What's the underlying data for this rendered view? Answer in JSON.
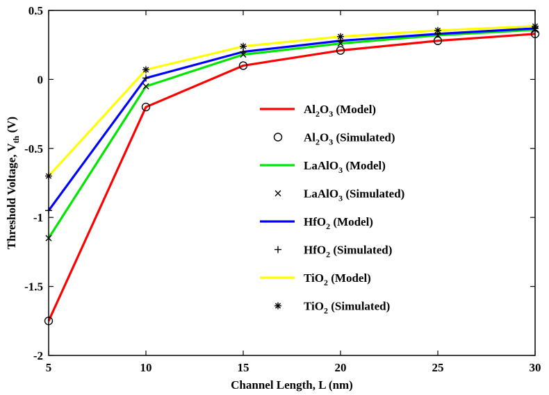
{
  "chart_data": {
    "type": "line",
    "x": [
      5,
      10,
      15,
      20,
      25,
      30
    ],
    "xlim": [
      5,
      30
    ],
    "ylim": [
      -2,
      0.5
    ],
    "xticks": [
      "5",
      "10",
      "15",
      "20",
      "25",
      "30"
    ],
    "yticks": [
      "-2",
      "-1.5",
      "-1",
      "-0.5",
      "0",
      "0.5"
    ],
    "xlabel": "Channel Length, L (nm)",
    "ylabel": {
      "main": "Threshold Voltage, V",
      "sub": "th",
      "unit": " (V)"
    },
    "grid": false,
    "legend_position": "center-right",
    "series": [
      {
        "name": "Al2O3 (Model)",
        "kind": "line",
        "color": "#ff0000",
        "label": {
          "a": "Al",
          "s1": "2",
          "b": "O",
          "s2": "3",
          "c": " (Model)"
        },
        "values": [
          -1.75,
          -0.2,
          0.1,
          0.21,
          0.28,
          0.33
        ]
      },
      {
        "name": "Al2O3 (Simulated)",
        "kind": "marker",
        "marker": "circle",
        "label": {
          "a": "Al",
          "s1": "2",
          "b": "O",
          "s2": "3",
          "c": " (Simulated)"
        },
        "values": [
          -1.75,
          -0.2,
          0.1,
          0.21,
          0.28,
          0.33
        ]
      },
      {
        "name": "LaAlO3 (Model)",
        "kind": "line",
        "color": "#00e600",
        "label": {
          "a": "LaAlO",
          "s1": "3",
          "b": "",
          "s2": "",
          "c": " (Model)"
        },
        "values": [
          -1.15,
          -0.05,
          0.18,
          0.26,
          0.32,
          0.36
        ]
      },
      {
        "name": "LaAlO3 (Simulated)",
        "kind": "marker",
        "marker": "x",
        "label": {
          "a": "LaAlO",
          "s1": "3",
          "b": "",
          "s2": "",
          "c": " (Simulated)"
        },
        "values": [
          -1.15,
          -0.05,
          0.18,
          0.26,
          0.32,
          0.36
        ]
      },
      {
        "name": "HfO2 (Model)",
        "kind": "line",
        "color": "#0000ff",
        "label": {
          "a": "HfO",
          "s1": "2",
          "b": "",
          "s2": "",
          "c": " (Model)"
        },
        "values": [
          -0.95,
          0.01,
          0.2,
          0.28,
          0.33,
          0.37
        ]
      },
      {
        "name": "HfO2 (Simulated)",
        "kind": "marker",
        "marker": "plus",
        "label": {
          "a": "HfO",
          "s1": "2",
          "b": "",
          "s2": "",
          "c": " (Simulated)"
        },
        "values": [
          -0.95,
          0.01,
          0.2,
          0.28,
          0.33,
          0.37
        ]
      },
      {
        "name": "TiO2 (Model)",
        "kind": "line",
        "color": "#ffff00",
        "label": {
          "a": "TiO",
          "s1": "2",
          "b": "",
          "s2": "",
          "c": " (Model)"
        },
        "values": [
          -0.7,
          0.07,
          0.24,
          0.31,
          0.355,
          0.385
        ]
      },
      {
        "name": "TiO2 (Simulated)",
        "kind": "marker",
        "marker": "star",
        "label": {
          "a": "TiO",
          "s1": "2",
          "b": "",
          "s2": "",
          "c": " (Simulated)"
        },
        "values": [
          -0.7,
          0.07,
          0.24,
          0.31,
          0.355,
          0.385
        ]
      }
    ]
  }
}
